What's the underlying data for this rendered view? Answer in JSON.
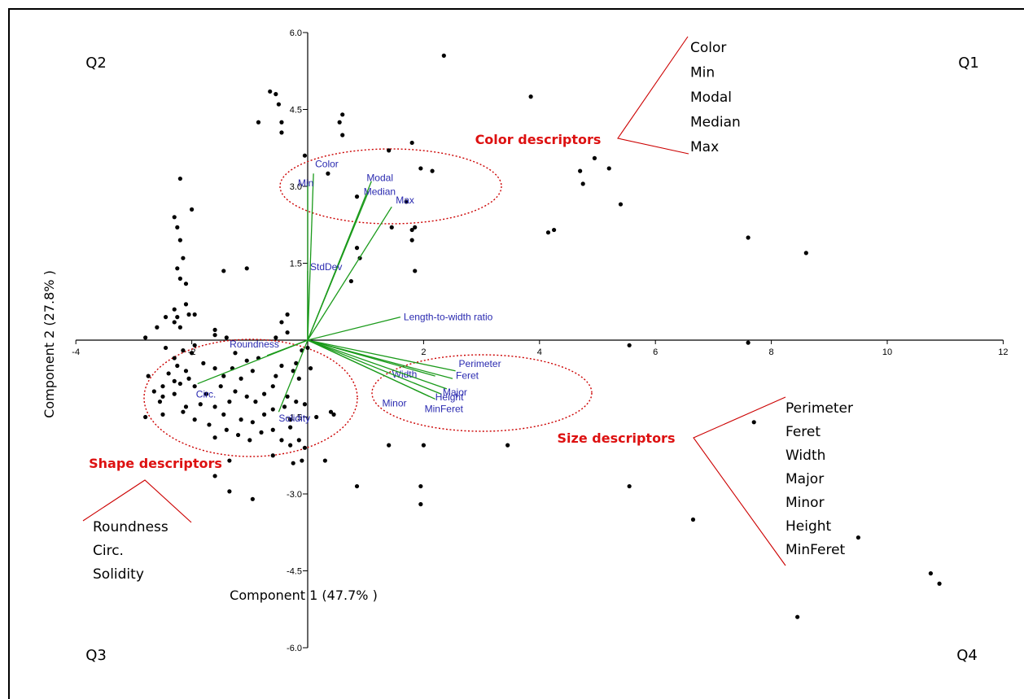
{
  "chart_data": {
    "type": "scatter",
    "title": "",
    "xlabel": "Component 1 (47.7% )",
    "ylabel": "Component 2 (27.8% )",
    "xlim": [
      -4,
      12
    ],
    "ylim": [
      -6,
      6
    ],
    "x_ticks": [
      "-4",
      "-2",
      "2",
      "4",
      "6",
      "8",
      "10",
      "12"
    ],
    "y_ticks": [
      "6.0",
      "4.5",
      "3.0",
      "1.5",
      "-1.5",
      "-3.0",
      "-4.5",
      "-6.0"
    ],
    "quadrants": [
      "Q1",
      "Q2",
      "Q3",
      "Q4"
    ],
    "points": [
      [
        2.35,
        5.55
      ],
      [
        3.85,
        4.75
      ],
      [
        -0.65,
        4.85
      ],
      [
        -0.55,
        4.8
      ],
      [
        -0.5,
        4.6
      ],
      [
        -0.45,
        4.25
      ],
      [
        -0.45,
        4.05
      ],
      [
        -0.85,
        4.25
      ],
      [
        -0.05,
        3.6
      ],
      [
        0.6,
        4.4
      ],
      [
        0.55,
        4.25
      ],
      [
        0.6,
        4.0
      ],
      [
        1.4,
        3.7
      ],
      [
        1.8,
        3.85
      ],
      [
        1.95,
        3.35
      ],
      [
        2.15,
        3.3
      ],
      [
        0.35,
        3.25
      ],
      [
        0.85,
        2.8
      ],
      [
        -2.2,
        3.15
      ],
      [
        -2.0,
        2.55
      ],
      [
        -2.3,
        2.4
      ],
      [
        -2.25,
        2.2
      ],
      [
        -2.2,
        1.95
      ],
      [
        -2.15,
        1.6
      ],
      [
        -2.25,
        1.4
      ],
      [
        -2.2,
        1.2
      ],
      [
        -2.1,
        1.1
      ],
      [
        -2.3,
        0.6
      ],
      [
        -2.25,
        0.45
      ],
      [
        -2.05,
        0.5
      ],
      [
        -2.1,
        0.7
      ],
      [
        -1.95,
        0.5
      ],
      [
        -2.3,
        0.35
      ],
      [
        -2.6,
        0.25
      ],
      [
        -2.45,
        0.45
      ],
      [
        -2.2,
        0.25
      ],
      [
        -2.8,
        0.05
      ],
      [
        -1.6,
        0.2
      ],
      [
        -1.6,
        0.1
      ],
      [
        -1.4,
        0.05
      ],
      [
        -1.95,
        -0.1
      ],
      [
        -1.45,
        1.35
      ],
      [
        -1.05,
        1.4
      ],
      [
        -0.35,
        0.5
      ],
      [
        -0.45,
        0.35
      ],
      [
        0.85,
        1.8
      ],
      [
        0.9,
        1.6
      ],
      [
        0.75,
        1.15
      ],
      [
        1.45,
        2.2
      ],
      [
        1.8,
        2.15
      ],
      [
        1.8,
        1.95
      ],
      [
        1.85,
        1.35
      ],
      [
        1.85,
        2.2
      ],
      [
        1.7,
        2.7
      ],
      [
        4.15,
        2.1
      ],
      [
        4.25,
        2.15
      ],
      [
        4.7,
        3.3
      ],
      [
        4.75,
        3.05
      ],
      [
        4.95,
        3.55
      ],
      [
        5.2,
        3.35
      ],
      [
        5.4,
        2.65
      ],
      [
        7.6,
        2.0
      ],
      [
        8.6,
        1.7
      ],
      [
        5.55,
        -0.1
      ],
      [
        7.6,
        -0.05
      ],
      [
        7.7,
        -1.6
      ],
      [
        6.65,
        -3.5
      ],
      [
        5.55,
        -2.85
      ],
      [
        3.45,
        -2.05
      ],
      [
        9.5,
        -3.85
      ],
      [
        10.75,
        -4.55
      ],
      [
        10.9,
        -4.75
      ],
      [
        8.45,
        -5.4
      ],
      [
        0.4,
        -1.4
      ],
      [
        0.45,
        -1.45
      ],
      [
        1.4,
        -2.05
      ],
      [
        2.0,
        -2.05
      ],
      [
        1.95,
        -2.85
      ],
      [
        0.85,
        -2.85
      ],
      [
        1.95,
        -3.2
      ],
      [
        0.3,
        -2.35
      ],
      [
        -0.1,
        -2.35
      ],
      [
        -0.3,
        -2.05
      ],
      [
        -0.25,
        -2.4
      ],
      [
        -0.6,
        -2.25
      ],
      [
        -0.95,
        -3.1
      ],
      [
        -1.35,
        -2.95
      ],
      [
        -1.6,
        -2.65
      ],
      [
        -1.35,
        -2.35
      ],
      [
        -1.6,
        -1.9
      ],
      [
        -2.1,
        -1.3
      ],
      [
        -2.5,
        -1.45
      ],
      [
        -2.8,
        -1.5
      ],
      [
        -2.75,
        -0.7
      ],
      [
        -2.5,
        -0.9
      ],
      [
        -2.3,
        -0.8
      ],
      [
        -2.2,
        -0.85
      ],
      [
        -2.05,
        -0.75
      ],
      [
        -1.95,
        -0.9
      ],
      [
        -2.25,
        -0.5
      ],
      [
        -2.3,
        -0.35
      ],
      [
        -2.15,
        -0.2
      ],
      [
        -2.0,
        -0.25
      ],
      [
        -2.45,
        -0.15
      ],
      [
        -2.3,
        -1.05
      ],
      [
        -2.55,
        -1.2
      ],
      [
        -2.15,
        -1.4
      ],
      [
        -1.95,
        -1.55
      ],
      [
        -1.75,
        -1.05
      ],
      [
        -1.8,
        -0.45
      ],
      [
        -1.6,
        -0.55
      ],
      [
        -1.45,
        -0.7
      ],
      [
        -1.3,
        -0.55
      ],
      [
        -1.15,
        -0.75
      ],
      [
        -0.95,
        -0.6
      ],
      [
        -1.05,
        -0.4
      ],
      [
        -0.85,
        -0.35
      ],
      [
        -1.25,
        -1.0
      ],
      [
        -1.05,
        -1.1
      ],
      [
        -0.9,
        -1.2
      ],
      [
        -0.75,
        -1.05
      ],
      [
        -0.6,
        -0.9
      ],
      [
        -0.55,
        -0.7
      ],
      [
        -0.45,
        -0.5
      ],
      [
        -0.25,
        -0.6
      ],
      [
        -0.2,
        -0.45
      ],
      [
        -1.15,
        -1.55
      ],
      [
        -0.95,
        -1.6
      ],
      [
        -0.75,
        -1.45
      ],
      [
        -0.6,
        -1.35
      ],
      [
        -0.4,
        -1.3
      ],
      [
        -0.3,
        -1.55
      ],
      [
        -0.2,
        -1.2
      ],
      [
        -0.05,
        -1.25
      ],
      [
        -0.35,
        -1.1
      ],
      [
        -1.4,
        -1.75
      ],
      [
        -1.2,
        -1.85
      ],
      [
        -1.0,
        -1.95
      ],
      [
        -0.8,
        -1.8
      ],
      [
        -0.6,
        -1.75
      ],
      [
        -0.45,
        -1.95
      ],
      [
        -0.15,
        -1.95
      ],
      [
        -0.05,
        -2.1
      ],
      [
        -0.3,
        -1.7
      ],
      [
        -1.6,
        -1.3
      ],
      [
        -1.45,
        -1.45
      ],
      [
        -1.35,
        -1.2
      ],
      [
        -1.7,
        -1.65
      ],
      [
        -0.1,
        -0.2
      ],
      [
        0.0,
        -0.15
      ],
      [
        0.05,
        -0.55
      ],
      [
        -0.55,
        0.05
      ],
      [
        -0.35,
        0.15
      ],
      [
        -2.5,
        -1.1
      ],
      [
        -2.65,
        -1.0
      ],
      [
        -2.4,
        -0.65
      ],
      [
        -1.85,
        -1.25
      ],
      [
        -1.5,
        -0.9
      ],
      [
        0.15,
        -1.5
      ],
      [
        -2.1,
        -0.6
      ],
      [
        -1.25,
        -0.25
      ],
      [
        -0.15,
        -0.75
      ]
    ],
    "loadings": [
      {
        "name": "Color",
        "x": 0.1,
        "y": 3.25
      },
      {
        "name": "Min",
        "x": 0.0,
        "y": 3.05
      },
      {
        "name": "Modal",
        "x": 1.1,
        "y": 3.1
      },
      {
        "name": "Median",
        "x": 1.05,
        "y": 2.9
      },
      {
        "name": "Max",
        "x": 1.45,
        "y": 2.6
      },
      {
        "name": "StdDev",
        "x": 0.0,
        "y": 1.35
      },
      {
        "name": "Length-to-width ratio",
        "x": 1.6,
        "y": 0.45
      },
      {
        "name": "Roundness",
        "x": -0.7,
        "y": -0.3
      },
      {
        "name": "Circ.",
        "x": -1.9,
        "y": -0.85
      },
      {
        "name": "Solidity",
        "x": -0.5,
        "y": -1.4
      },
      {
        "name": "Perimeter",
        "x": 2.55,
        "y": -0.6
      },
      {
        "name": "Feret",
        "x": 2.5,
        "y": -0.75
      },
      {
        "name": "Width",
        "x": 2.2,
        "y": -0.7
      },
      {
        "name": "Major",
        "x": 2.4,
        "y": -0.95
      },
      {
        "name": "Minor",
        "x": 2.1,
        "y": -1.1
      },
      {
        "name": "Height",
        "x": 2.3,
        "y": -1.05
      },
      {
        "name": "MinFeret",
        "x": 2.2,
        "y": -1.15
      }
    ],
    "groups": {
      "color": {
        "label": "Color descriptors",
        "items": [
          "Color",
          "Min",
          "Modal",
          "Median",
          "Max"
        ]
      },
      "size": {
        "label": "Size descriptors",
        "items": [
          "Perimeter",
          "Feret",
          "Width",
          "Major",
          "Minor",
          "Height",
          "MinFeret"
        ]
      },
      "shape": {
        "label": "Shape descriptors",
        "items": [
          "Roundness",
          "Circ.",
          "Solidity"
        ]
      }
    }
  }
}
